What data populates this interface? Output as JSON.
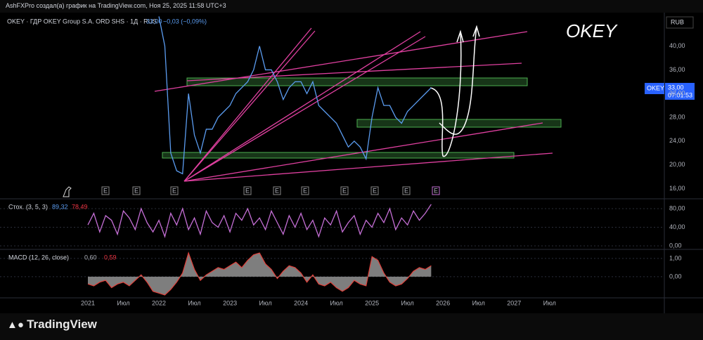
{
  "header": {
    "credit": "AshFXPro создал(а) график на TradingView.com, Ноя 25, 2025 11:58 UTC+3",
    "symbol": "OKEY · ГДР OKEY Group S.A. ORD SHS · 1Д · RUS",
    "last": "33,00",
    "change": "−0,03 (−0,09%)",
    "annotation": "OKEY",
    "currency": "RUB"
  },
  "price_tag": {
    "ticker": "OKEY",
    "price": "33,00",
    "timer": "07:01:53"
  },
  "event_markers": [
    "E",
    "E",
    "E",
    "E",
    "E",
    "E",
    "E",
    "E",
    "E",
    "E"
  ],
  "footer": {
    "brand": "TradingView"
  },
  "chart_data": [
    {
      "type": "line",
      "color": "#5b9cf0",
      "ylim": [
        14.4,
        45.4
      ],
      "yticks": [
        {
          "value": 16,
          "label": "16,00"
        },
        {
          "value": 20,
          "label": "20,00"
        },
        {
          "value": 24,
          "label": "24,00"
        },
        {
          "value": 28,
          "label": "28,00"
        },
        {
          "value": 32,
          "label": "32,00"
        },
        {
          "value": 36,
          "label": "36,00"
        },
        {
          "value": 40,
          "label": "40,00"
        }
      ],
      "values": [
        null,
        null,
        null,
        null,
        null,
        null,
        null,
        null,
        null,
        null,
        null,
        null,
        45,
        40,
        22,
        19,
        18.5,
        32,
        25,
        22,
        26,
        26,
        28,
        29,
        30,
        32,
        33,
        34,
        36,
        40,
        36,
        36,
        34,
        31,
        33,
        34,
        34,
        32,
        34,
        30,
        29,
        28,
        27,
        25,
        23,
        24,
        23,
        21,
        28,
        33,
        30,
        30,
        28,
        27,
        29,
        30,
        31,
        32,
        33,
        null,
        null,
        null,
        null,
        null,
        null,
        null,
        null,
        null,
        null,
        null,
        null,
        null,
        null,
        null,
        null,
        null,
        null,
        null,
        null,
        null,
        null
      ]
    },
    {
      "type": "line",
      "title": "Стох. (3, 5, 3)",
      "legend_values": [
        "89,32",
        "78,49"
      ],
      "color": "#c56fd6",
      "ylim": [
        -6,
        96.6
      ],
      "yticks": [
        {
          "value": 0,
          "label": "0,00"
        },
        {
          "value": 40,
          "label": "40,00"
        },
        {
          "value": 80,
          "label": "80,00"
        }
      ],
      "values": [
        45,
        70,
        30,
        65,
        55,
        25,
        75,
        60,
        35,
        80,
        50,
        30,
        55,
        20,
        70,
        45,
        80,
        35,
        60,
        25,
        75,
        50,
        40,
        65,
        30,
        70,
        55,
        80,
        45,
        60,
        35,
        75,
        50,
        25,
        65,
        40,
        70,
        35,
        55,
        20,
        60,
        45,
        75,
        30,
        50,
        65,
        25,
        55,
        40,
        70,
        50,
        80,
        35,
        60,
        45,
        75,
        55,
        70,
        89.32,
        null,
        null,
        null,
        null,
        null,
        null,
        null,
        null,
        null,
        null,
        null,
        null,
        null,
        null,
        null,
        null,
        null,
        null,
        null,
        null,
        null,
        null
      ]
    },
    {
      "type": "area",
      "title": "MACD (12, 26, close)",
      "legend_values": [
        "0,60",
        "0,59"
      ],
      "color": "#e0403a",
      "ylim": [
        -1.08,
        1.38
      ],
      "yticks": [
        {
          "value": 0,
          "label": "0,00"
        },
        {
          "value": 1,
          "label": "1,00"
        }
      ],
      "categories": [
        "2021",
        null,
        null,
        null,
        null,
        null,
        "Июл",
        null,
        null,
        null,
        null,
        null,
        "2022",
        null,
        null,
        null,
        null,
        null,
        "Июл",
        null,
        null,
        null,
        null,
        null,
        "2023",
        null,
        null,
        null,
        null,
        null,
        "Июл",
        null,
        null,
        null,
        null,
        null,
        "2024",
        null,
        null,
        null,
        null,
        null,
        "Июл",
        null,
        null,
        null,
        null,
        null,
        "2025",
        null,
        null,
        null,
        null,
        null,
        "Июл",
        null,
        null,
        null,
        null,
        null,
        "2026",
        null,
        null,
        null,
        null,
        null,
        "Июл",
        null,
        null,
        null,
        null,
        null,
        "2027",
        null,
        null,
        null,
        null,
        null,
        "Июл",
        null,
        null
      ],
      "values": [
        -0.4,
        -0.5,
        -0.3,
        -0.2,
        -0.6,
        -0.4,
        -0.3,
        -0.5,
        -0.2,
        0.1,
        -0.3,
        -0.8,
        -0.9,
        -1.0,
        -0.7,
        -0.3,
        0.2,
        1.3,
        0.4,
        -0.2,
        0.1,
        0.3,
        0.5,
        0.4,
        0.6,
        0.8,
        0.5,
        0.9,
        1.2,
        1.3,
        0.7,
        0.4,
        -0.1,
        0.3,
        0.6,
        0.5,
        0.2,
        -0.3,
        0.1,
        -0.4,
        -0.5,
        -0.3,
        -0.6,
        -0.8,
        -0.6,
        -0.2,
        -0.4,
        -0.5,
        1.1,
        0.9,
        0.2,
        -0.3,
        -0.5,
        -0.4,
        -0.1,
        0.3,
        0.5,
        0.4,
        0.6,
        null,
        null,
        null,
        null,
        null,
        null,
        null,
        null,
        null,
        null,
        null,
        null,
        null,
        null,
        null,
        null,
        null,
        null,
        null,
        null,
        null,
        null
      ]
    }
  ]
}
